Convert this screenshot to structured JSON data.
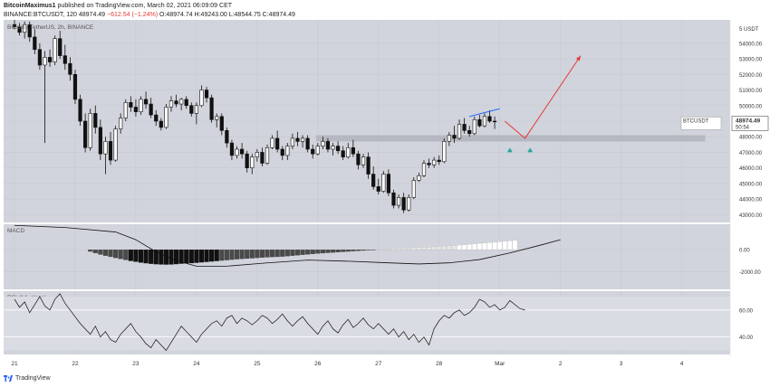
{
  "header": {
    "user": "BitcoinMaximus1",
    "published": "published on TradingView.com, March 02, 2021 06:09:09 CET",
    "symbol_line": "BINANCE:BTCUSDT, 120",
    "last": "48974.49",
    "change": "−612.54 (−1.24%)",
    "ohlc": "O:48974.74 H:49243.00 L:48544.75 C:48974.49"
  },
  "footer": {
    "brand": "TradingView"
  },
  "chart_data": [
    {
      "type": "candlestick",
      "title": "Bitcoin / TetherUS, 2h, BINANCE",
      "ylabel": "USDT",
      "ylim": [
        42500,
        55500
      ],
      "y_ticks": [
        43000,
        44000,
        45000,
        46000,
        47000,
        48000,
        49000,
        50000,
        51000,
        52000,
        53000,
        54000
      ],
      "y_tick_labels": [
        "43000.00",
        "44000.00",
        "45000.00",
        "46000.00",
        "47000.00",
        "48000.00",
        "49000.00",
        "50000.00",
        "51000.00",
        "52000.00",
        "53000.00",
        "54000.00"
      ],
      "y_top_label": "USDT",
      "y_top_value": "5",
      "x_ticks": [
        {
          "label": "21",
          "i": 0
        },
        {
          "label": "22",
          "i": 12
        },
        {
          "label": "23",
          "i": 24
        },
        {
          "label": "24",
          "i": 36
        },
        {
          "label": "25",
          "i": 48
        },
        {
          "label": "26",
          "i": 60
        },
        {
          "label": "27",
          "i": 72
        },
        {
          "label": "28",
          "i": 84
        },
        {
          "label": "Mar",
          "i": 96
        },
        {
          "label": "2",
          "i": 108
        },
        {
          "label": "3",
          "i": 120
        },
        {
          "label": "4",
          "i": 132
        }
      ],
      "price_label": {
        "symbol": "BTCUSDT",
        "value": "48974.49",
        "countdown": "50:54"
      },
      "support_zone": [
        47700,
        48100
      ],
      "candles": [
        [
          55200,
          55500,
          54900,
          55050
        ],
        [
          55050,
          55300,
          54500,
          54700
        ],
        [
          54700,
          55400,
          54300,
          55200
        ],
        [
          55200,
          55400,
          54100,
          54400
        ],
        [
          54400,
          54900,
          53300,
          53600
        ],
        [
          53600,
          54000,
          52300,
          52600
        ],
        [
          52600,
          53500,
          47600,
          53100
        ],
        [
          53100,
          53600,
          52500,
          52800
        ],
        [
          52800,
          54500,
          52600,
          54300
        ],
        [
          54300,
          54800,
          53000,
          53200
        ],
        [
          53200,
          53900,
          52300,
          52700
        ],
        [
          52700,
          53100,
          51600,
          52000
        ],
        [
          52000,
          52300,
          50100,
          50400
        ],
        [
          50400,
          50700,
          48700,
          49000
        ],
        [
          49000,
          49500,
          47000,
          47300
        ],
        [
          47300,
          49800,
          47100,
          49500
        ],
        [
          49500,
          50000,
          48200,
          48600
        ],
        [
          48600,
          49100,
          46500,
          46900
        ],
        [
          46900,
          48000,
          45600,
          47700
        ],
        [
          47700,
          48300,
          46200,
          46500
        ],
        [
          46500,
          48700,
          46400,
          48500
        ],
        [
          48500,
          49500,
          48200,
          49200
        ],
        [
          49200,
          50400,
          49000,
          50200
        ],
        [
          50200,
          50600,
          49600,
          49900
        ],
        [
          49900,
          50400,
          49300,
          49600
        ],
        [
          49600,
          50600,
          49400,
          50400
        ],
        [
          50400,
          50900,
          49800,
          50100
        ],
        [
          50100,
          50500,
          49200,
          49400
        ],
        [
          49400,
          49700,
          48700,
          49000
        ],
        [
          49000,
          49200,
          48400,
          48600
        ],
        [
          48600,
          50100,
          48500,
          49900
        ],
        [
          49900,
          50600,
          49600,
          50300
        ],
        [
          50300,
          50700,
          49900,
          50100
        ],
        [
          50100,
          50500,
          49700,
          50400
        ],
        [
          50400,
          50600,
          49800,
          50000
        ],
        [
          50000,
          50200,
          49300,
          49500
        ],
        [
          49500,
          50200,
          48800,
          50000
        ],
        [
          50000,
          51300,
          49900,
          51000
        ],
        [
          51000,
          51200,
          50200,
          50500
        ],
        [
          50500,
          50700,
          48900,
          49100
        ],
        [
          49100,
          49500,
          48600,
          49300
        ],
        [
          49300,
          49500,
          48100,
          48400
        ],
        [
          48400,
          48600,
          47300,
          47600
        ],
        [
          47600,
          47800,
          46500,
          46800
        ],
        [
          46800,
          47400,
          46600,
          47200
        ],
        [
          47200,
          47600,
          46600,
          46900
        ],
        [
          46900,
          47100,
          45700,
          46000
        ],
        [
          46000,
          46900,
          45600,
          46700
        ],
        [
          46700,
          47200,
          46400,
          47000
        ],
        [
          47000,
          47300,
          46100,
          46300
        ],
        [
          46300,
          47500,
          46200,
          47300
        ],
        [
          47300,
          48100,
          47200,
          47900
        ],
        [
          47900,
          48400,
          47000,
          47200
        ],
        [
          47200,
          47400,
          46500,
          46800
        ],
        [
          46800,
          47600,
          46500,
          47400
        ],
        [
          47400,
          48200,
          47200,
          47900
        ],
        [
          47900,
          48300,
          47400,
          47700
        ],
        [
          47700,
          48100,
          47300,
          47900
        ],
        [
          47900,
          48100,
          47000,
          47200
        ],
        [
          47200,
          47500,
          46600,
          46900
        ],
        [
          46900,
          47600,
          46800,
          47400
        ],
        [
          47400,
          48000,
          47200,
          47700
        ],
        [
          47700,
          47900,
          47000,
          47200
        ],
        [
          47200,
          47600,
          46800,
          47400
        ],
        [
          47400,
          47700,
          46900,
          47100
        ],
        [
          47100,
          47400,
          46500,
          46700
        ],
        [
          46700,
          47600,
          46600,
          47300
        ],
        [
          47300,
          47800,
          46700,
          46900
        ],
        [
          46900,
          47100,
          45900,
          46200
        ],
        [
          46200,
          46900,
          46000,
          46700
        ],
        [
          46700,
          47000,
          45300,
          45600
        ],
        [
          45600,
          46100,
          44600,
          44800
        ],
        [
          44800,
          45300,
          44300,
          44500
        ],
        [
          44500,
          45800,
          44400,
          45600
        ],
        [
          45600,
          45900,
          44200,
          44400
        ],
        [
          44400,
          44600,
          43400,
          43600
        ],
        [
          43600,
          44300,
          43400,
          44100
        ],
        [
          44100,
          44400,
          43100,
          43300
        ],
        [
          43300,
          44300,
          43200,
          44100
        ],
        [
          44100,
          45400,
          44000,
          45200
        ],
        [
          45200,
          45700,
          45100,
          45500
        ],
        [
          45500,
          46500,
          45400,
          46300
        ],
        [
          46300,
          46600,
          46000,
          46200
        ],
        [
          46200,
          46700,
          46000,
          46500
        ],
        [
          46500,
          46800,
          46200,
          46400
        ],
        [
          46400,
          47900,
          46300,
          47700
        ],
        [
          47700,
          48300,
          47400,
          48100
        ],
        [
          48100,
          48700,
          47600,
          47900
        ],
        [
          47900,
          49100,
          47800,
          48800
        ],
        [
          48800,
          49200,
          48200,
          48400
        ],
        [
          48400,
          48700,
          48000,
          48200
        ],
        [
          48200,
          49300,
          48100,
          49100
        ],
        [
          49100,
          49400,
          48600,
          48700
        ],
        [
          48700,
          49500,
          48600,
          49300
        ],
        [
          49300,
          49700,
          48900,
          49000
        ],
        [
          49000,
          49300,
          48500,
          48974.49
        ]
      ],
      "drawings": {
        "blue_line": [
          [
            90,
            49300
          ],
          [
            96,
            49800
          ]
        ],
        "projection": [
          [
            97,
            49000
          ],
          [
            101,
            47900
          ],
          [
            112,
            53200
          ]
        ],
        "triangle_markers": [
          [
            98,
            47150
          ],
          [
            102,
            47150
          ]
        ]
      }
    },
    {
      "type": "histogram",
      "title": "MACD",
      "ylabel": "",
      "ylim": [
        -3600,
        2300
      ],
      "y_ticks": [
        -2000,
        0
      ],
      "y_tick_labels": [
        "-2000.00",
        "0.00"
      ],
      "hist_start": 15,
      "hist": [
        -180,
        -320,
        -450,
        -560,
        -660,
        -760,
        -850,
        -940,
        -1030,
        -1100,
        -1180,
        -1240,
        -1290,
        -1330,
        -1350,
        -1360,
        -1350,
        -1320,
        -1280,
        -1250,
        -1230,
        -1200,
        -1160,
        -1120,
        -1080,
        -1040,
        -1000,
        -960,
        -920,
        -880,
        -850,
        -820,
        -790,
        -760,
        -730,
        -700,
        -680,
        -660,
        -640,
        -600,
        -560,
        -520,
        -480,
        -440,
        -400,
        -360,
        -330,
        -300,
        -270,
        -240,
        -210,
        -180,
        -150,
        -120,
        -90,
        -60,
        -30,
        0,
        30,
        60,
        90,
        120,
        140,
        160,
        180,
        200,
        220,
        240,
        260,
        290,
        320,
        350,
        380,
        410,
        440,
        480,
        520,
        560,
        600,
        640,
        680,
        720,
        760,
        800,
        840
      ],
      "line": [
        [
          0,
          2200
        ],
        [
          10,
          2000
        ],
        [
          20,
          1600
        ],
        [
          24,
          900
        ],
        [
          28,
          -200
        ],
        [
          32,
          -1000
        ],
        [
          36,
          -1500
        ],
        [
          42,
          -1500
        ],
        [
          50,
          -1200
        ],
        [
          58,
          -950
        ],
        [
          66,
          -1050
        ],
        [
          74,
          -1200
        ],
        [
          80,
          -1300
        ],
        [
          86,
          -1200
        ],
        [
          92,
          -900
        ],
        [
          98,
          -300
        ],
        [
          104,
          400
        ],
        [
          108,
          900
        ]
      ]
    },
    {
      "type": "line",
      "title": "RSI (14, close)",
      "ylabel": "",
      "ylim": [
        27,
        74
      ],
      "y_ticks": [
        40,
        60
      ],
      "y_tick_labels": [
        "40.00",
        "60.00"
      ],
      "band": [
        30,
        70
      ],
      "values": [
        68,
        62,
        66,
        58,
        64,
        70,
        63,
        60,
        68,
        72,
        65,
        60,
        55,
        50,
        46,
        42,
        48,
        40,
        44,
        38,
        36,
        42,
        46,
        50,
        44,
        40,
        35,
        32,
        38,
        34,
        30,
        36,
        42,
        48,
        44,
        40,
        36,
        42,
        46,
        50,
        52,
        48,
        54,
        56,
        50,
        54,
        52,
        49,
        52,
        56,
        54,
        50,
        53,
        57,
        52,
        48,
        52,
        55,
        50,
        46,
        42,
        48,
        52,
        46,
        43,
        49,
        53,
        47,
        50,
        54,
        49,
        46,
        50,
        46,
        42,
        46,
        40,
        44,
        38,
        42,
        36,
        40,
        34,
        46,
        52,
        56,
        54,
        58,
        60,
        56,
        58,
        62,
        68,
        66,
        62,
        64,
        60,
        62,
        67,
        64,
        61,
        60
      ]
    }
  ]
}
